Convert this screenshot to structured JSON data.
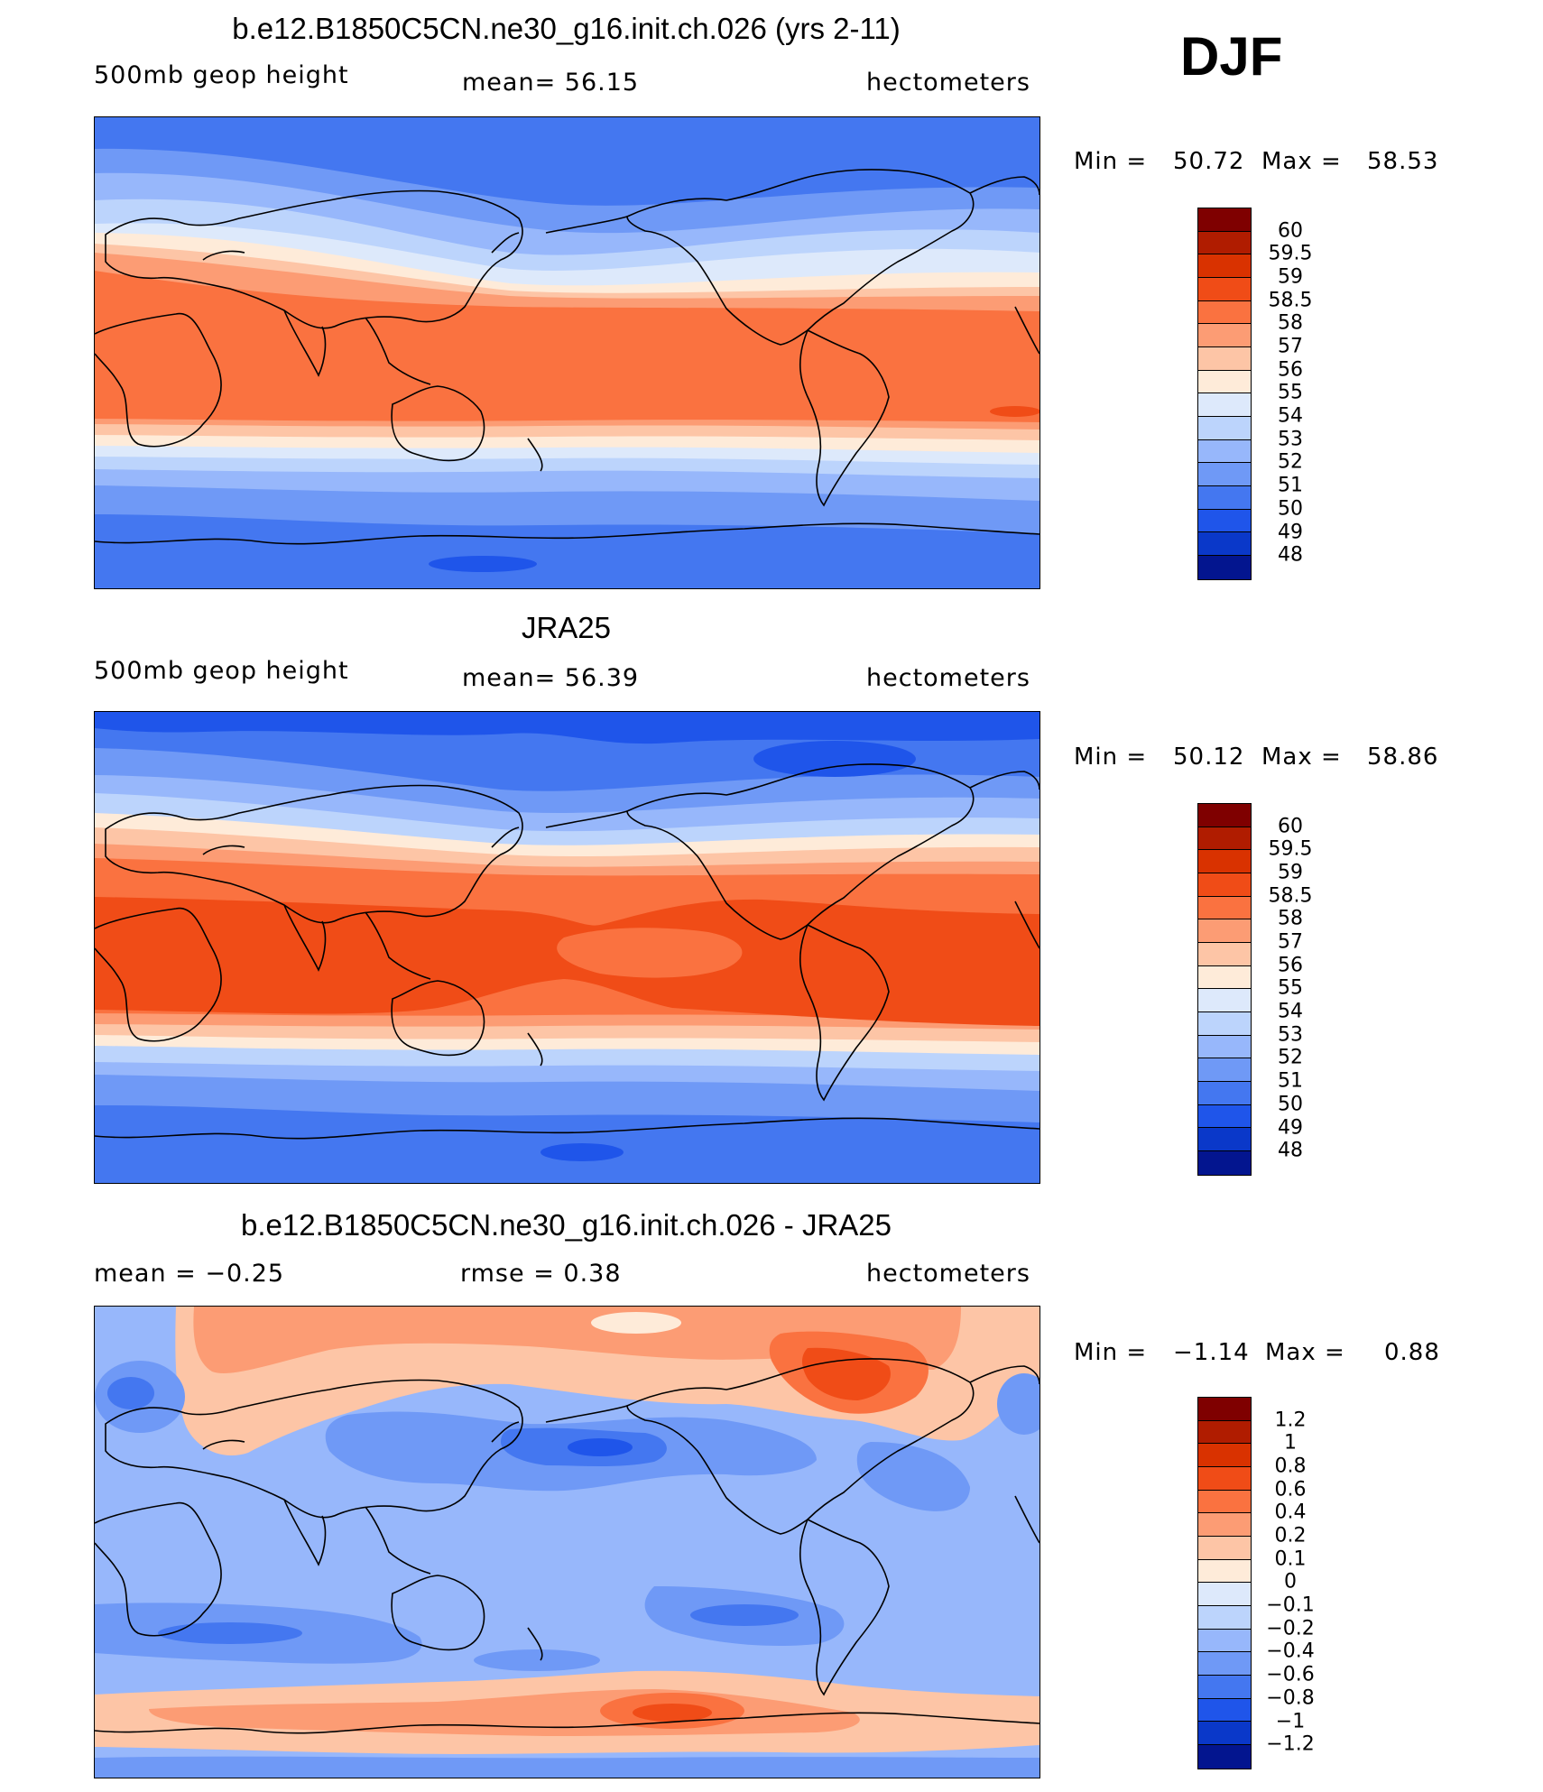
{
  "season": "DJF",
  "panels": [
    {
      "id": "model",
      "title": "b.e12.B1850C5CN.ne30_g16.init.ch.026 (yrs 2-11)",
      "variable": "500mb geop height",
      "stat": "mean=   56.15",
      "units": "hectometers",
      "min": "50.72",
      "max": "58.53",
      "min_label": "Min =",
      "max_label": "Max =",
      "scale": "height"
    },
    {
      "id": "obs",
      "title": "JRA25",
      "variable": "500mb geop height",
      "stat": "mean=   56.39",
      "units": "hectometers",
      "min": "50.12",
      "max": "58.86",
      "min_label": "Min =",
      "max_label": "Max =",
      "scale": "height"
    },
    {
      "id": "diff",
      "title": "b.e12.B1850C5CN.ne30_g16.init.ch.026 - JRA25",
      "variable": "mean =   −0.25",
      "stat": "rmse =    0.38",
      "units": "hectometers",
      "min": "−1.14",
      "max": "0.88",
      "min_label": "Min =",
      "max_label": "Max =",
      "scale": "diff"
    }
  ],
  "colorbars": {
    "height": {
      "labels": [
        "60",
        "59.5",
        "59",
        "58.5",
        "58",
        "57",
        "56",
        "55",
        "54",
        "53",
        "52",
        "51",
        "50",
        "49",
        "48"
      ],
      "colors": [
        "#7f0000",
        "#b01c00",
        "#d93200",
        "#f04c17",
        "#fa7240",
        "#fc9c74",
        "#fdc5a6",
        "#feebd9",
        "#dde9fb",
        "#bcd4fc",
        "#97b7fb",
        "#6f99f6",
        "#4477f0",
        "#1f55ea",
        "#0a38c9",
        "#03158f"
      ]
    },
    "diff": {
      "labels": [
        "1.2",
        "1",
        "0.8",
        "0.6",
        "0.4",
        "0.2",
        "0.1",
        "0",
        "−0.1",
        "−0.2",
        "−0.4",
        "−0.6",
        "−0.8",
        "−1",
        "−1.2"
      ],
      "colors": [
        "#7f0000",
        "#b01c00",
        "#d93200",
        "#f04c17",
        "#fa7240",
        "#fc9c74",
        "#fdc5a6",
        "#feebd9",
        "#dde9fb",
        "#bcd4fc",
        "#97b7fb",
        "#6f99f6",
        "#4477f0",
        "#1f55ea",
        "#0a38c9",
        "#03158f"
      ]
    }
  }
}
